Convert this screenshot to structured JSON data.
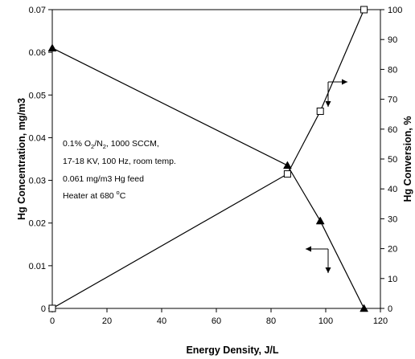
{
  "chart_data": {
    "type": "line",
    "xlabel": "Energy Density, J/L",
    "ylabel_left": "Hg Concentration, mg/m3",
    "ylabel_right": "Hg Conversion, %",
    "xlim": [
      0,
      120
    ],
    "ylim_left": [
      0,
      0.07
    ],
    "ylim_right": [
      0,
      100
    ],
    "x_ticks": [
      "0",
      "20",
      "40",
      "60",
      "80",
      "100",
      "120"
    ],
    "y_left_ticks": [
      "0",
      "0.01",
      "0.02",
      "0.03",
      "0.04",
      "0.05",
      "0.06",
      "0.07"
    ],
    "y_right_ticks": [
      "0",
      "10",
      "20",
      "30",
      "40",
      "50",
      "60",
      "70",
      "80",
      "90",
      "100"
    ],
    "grid": false,
    "series": [
      {
        "axis": "left",
        "marker": "filled-triangle",
        "x": [
          0,
          86,
          98,
          114
        ],
        "y": [
          0.061,
          0.0335,
          0.0205,
          0
        ]
      },
      {
        "axis": "right",
        "marker": "open-square",
        "x": [
          0,
          86,
          98,
          114
        ],
        "y": [
          0,
          45,
          66,
          100
        ]
      }
    ],
    "annotations": [
      {
        "pre": "0.1% O",
        "sub1": "2",
        "mid": "/N",
        "sub2": "2",
        "post": ", 1000 SCCM,"
      },
      {
        "text": "17-18 KV, 100 Hz, room temp."
      },
      {
        "text": "0.061 mg/m3 Hg feed"
      },
      {
        "pre": "Heater at 680 ",
        "sup": "o",
        "post": "C"
      }
    ]
  }
}
